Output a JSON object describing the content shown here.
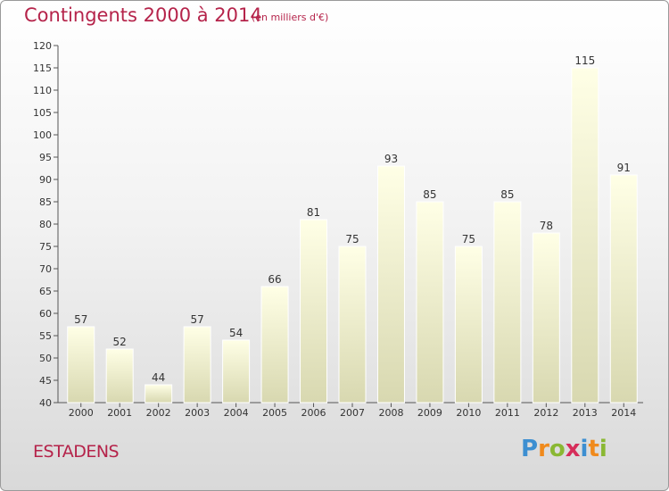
{
  "header": {
    "title": "Contingents 2000 à 2014",
    "subtitle": "(en milliers d'€)"
  },
  "footer": {
    "place": "ESTADENS",
    "logo": {
      "letters": [
        "P",
        "r",
        "o",
        "x",
        "i",
        "t",
        "i"
      ],
      "colors": [
        "#3d8fd1",
        "#f08a1c",
        "#8ab833",
        "#d62d5a",
        "#3d8fd1",
        "#f08a1c",
        "#8ab833"
      ]
    }
  },
  "chart_data": {
    "type": "bar",
    "categories": [
      "2000",
      "2001",
      "2002",
      "2003",
      "2004",
      "2005",
      "2006",
      "2007",
      "2008",
      "2009",
      "2010",
      "2011",
      "2012",
      "2013",
      "2014"
    ],
    "values": [
      57,
      52,
      44,
      57,
      54,
      66,
      81,
      75,
      93,
      85,
      75,
      85,
      78,
      115,
      91
    ],
    "title": "Contingents 2000 à 2014",
    "xlabel": "",
    "ylabel": "",
    "ylim": [
      40,
      120
    ],
    "yticks": [
      40,
      45,
      50,
      55,
      60,
      65,
      70,
      75,
      80,
      85,
      90,
      95,
      100,
      105,
      110,
      115,
      120
    ],
    "grid": false,
    "legend": "none",
    "bar_color": "#f4f4c8"
  }
}
